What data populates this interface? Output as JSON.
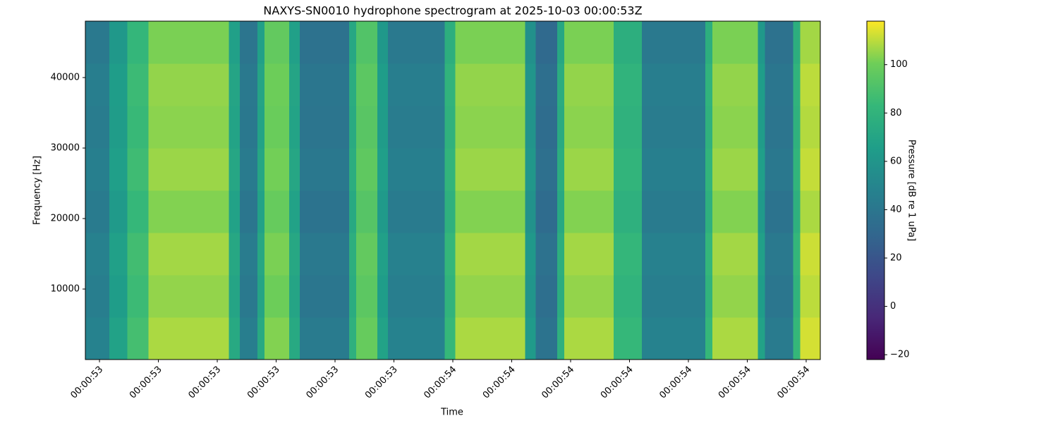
{
  "chart_data": {
    "type": "heatmap",
    "title": "NAXYS-SN0010 hydrophone spectrogram at 2025-10-03 00:00:53Z",
    "xlabel": "Time",
    "ylabel": "Frequency [Hz]",
    "colormap": "viridis",
    "x": [
      53.376,
      53.417,
      53.447,
      53.483,
      53.62,
      53.638,
      53.668,
      53.68,
      53.722,
      53.74,
      53.824,
      53.836,
      53.872,
      53.89,
      53.986,
      54.004,
      54.123,
      54.141,
      54.177,
      54.189,
      54.273,
      54.321,
      54.429,
      54.441,
      54.518,
      54.53,
      54.578,
      54.59,
      54.624
    ],
    "y": [
      0,
      6000,
      12000,
      18000,
      24000,
      30000,
      36000,
      42000,
      48000
    ],
    "z": [
      [
        48,
        68,
        88,
        108,
        73,
        45,
        73,
        103,
        73,
        43,
        78,
        98,
        68,
        48,
        83,
        108,
        63,
        38,
        78,
        108,
        83,
        48,
        83,
        108,
        68,
        43,
        83,
        113
      ],
      [
        45,
        65,
        85,
        105,
        70,
        42,
        70,
        100,
        70,
        40,
        75,
        95,
        65,
        45,
        80,
        105,
        60,
        35,
        75,
        105,
        80,
        45,
        80,
        105,
        65,
        40,
        80,
        110
      ],
      [
        47,
        67,
        87,
        107,
        72,
        44,
        72,
        102,
        72,
        42,
        77,
        97,
        67,
        47,
        82,
        107,
        62,
        37,
        77,
        107,
        82,
        47,
        82,
        107,
        67,
        42,
        82,
        112
      ],
      [
        43,
        63,
        83,
        103,
        68,
        40,
        68,
        98,
        68,
        38,
        73,
        93,
        63,
        43,
        78,
        103,
        58,
        33,
        73,
        103,
        78,
        43,
        78,
        103,
        63,
        38,
        78,
        108
      ],
      [
        46,
        66,
        86,
        106,
        71,
        43,
        71,
        101,
        71,
        41,
        76,
        96,
        66,
        46,
        81,
        106,
        61,
        36,
        76,
        106,
        81,
        46,
        81,
        106,
        66,
        41,
        81,
        111
      ],
      [
        44,
        64,
        84,
        104,
        69,
        41,
        69,
        99,
        69,
        39,
        74,
        94,
        64,
        44,
        79,
        104,
        59,
        34,
        74,
        104,
        79,
        44,
        79,
        104,
        64,
        39,
        79,
        109
      ],
      [
        45,
        65,
        85,
        105,
        70,
        42,
        70,
        100,
        70,
        40,
        75,
        95,
        65,
        45,
        80,
        105,
        60,
        35,
        75,
        105,
        80,
        45,
        80,
        105,
        65,
        40,
        80,
        110
      ],
      [
        42,
        62,
        82,
        102,
        67,
        39,
        67,
        97,
        67,
        37,
        72,
        92,
        62,
        42,
        77,
        102,
        57,
        32,
        72,
        102,
        77,
        42,
        77,
        102,
        62,
        37,
        77,
        107
      ]
    ],
    "xlim": [
      53.376,
      54.624
    ],
    "xticks": [
      {
        "value": 53.4,
        "label": "00:00:53"
      },
      {
        "value": 53.5,
        "label": "00:00:53"
      },
      {
        "value": 53.6,
        "label": "00:00:53"
      },
      {
        "value": 53.7,
        "label": "00:00:53"
      },
      {
        "value": 53.8,
        "label": "00:00:53"
      },
      {
        "value": 53.9,
        "label": "00:00:53"
      },
      {
        "value": 54.0,
        "label": "00:00:54"
      },
      {
        "value": 54.1,
        "label": "00:00:54"
      },
      {
        "value": 54.2,
        "label": "00:00:54"
      },
      {
        "value": 54.3,
        "label": "00:00:54"
      },
      {
        "value": 54.4,
        "label": "00:00:54"
      },
      {
        "value": 54.5,
        "label": "00:00:54"
      },
      {
        "value": 54.6,
        "label": "00:00:54"
      }
    ],
    "ylim": [
      0,
      48000
    ],
    "yticks": [
      10000,
      20000,
      30000,
      40000
    ],
    "colorbar": {
      "label": "Pressure [dB re 1 uPa]",
      "clim": [
        -22,
        118
      ],
      "ticks": [
        {
          "value": -20,
          "label": "−20"
        },
        0,
        20,
        40,
        60,
        80,
        100
      ]
    }
  }
}
